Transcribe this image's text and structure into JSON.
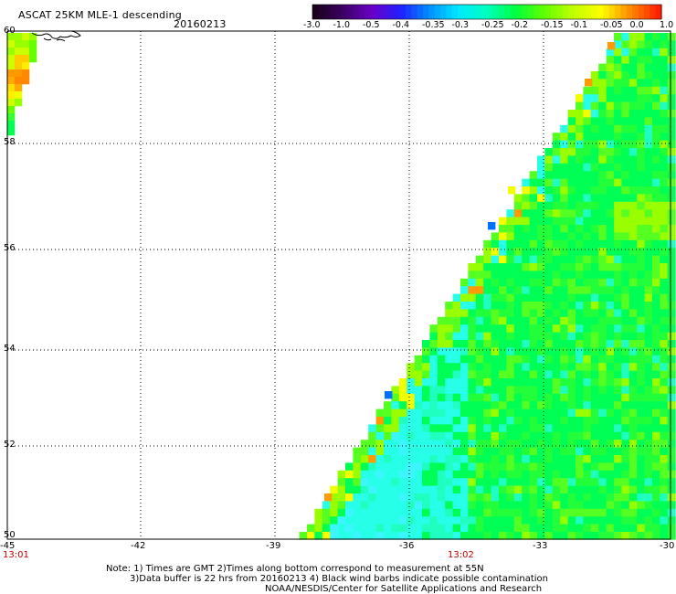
{
  "header": {
    "title": "ASCAT 25KM MLE-1 descending",
    "date": "20160213"
  },
  "colorbar": {
    "labels": [
      "-3.0",
      "-1.0",
      "-0.5",
      "-0.4",
      "-0.35",
      "-0.3",
      "-0.25",
      "-0.2",
      "-0.15",
      "-0.1",
      "-0.05",
      "0.0",
      "1.0"
    ],
    "colors": [
      "#1a001a",
      "#3d0066",
      "#6a00c8",
      "#2020ff",
      "#0090ff",
      "#00e8ff",
      "#00ffc0",
      "#00ff40",
      "#60ff00",
      "#c0ff00",
      "#ffff00",
      "#ff8c00",
      "#ff1e00"
    ]
  },
  "axes": {
    "lon_labels": [
      "-45",
      "-42",
      "-39",
      "-36",
      "-33",
      "-30"
    ],
    "lat_labels": [
      "60",
      "58",
      "56",
      "54",
      "52",
      "50"
    ]
  },
  "times": {
    "left": "13:01",
    "mid": "13:02"
  },
  "notes": {
    "line1": "Note: 1) Times are GMT 2)Times along bottom correspond to measurement at 55N",
    "line2": "3)Data buffer is 22 hrs from 20160213 4) Black wind barbs indicate possible contamination",
    "line3": "NOAA/NESDIS/Center for Satellite Applications and Research"
  }
}
